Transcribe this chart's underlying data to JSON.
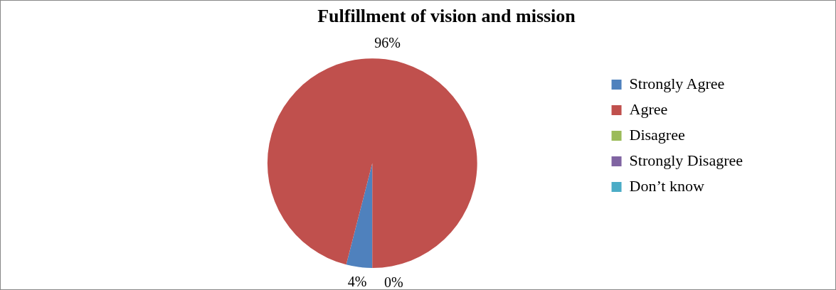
{
  "chart_data": {
    "type": "pie",
    "title": "Fulfillment of vision and mission",
    "categories": [
      "Strongly Agree",
      "Agree",
      "Disagree",
      "Strongly Disagree",
      "Don’t know"
    ],
    "values": [
      4,
      96,
      0,
      0,
      0
    ],
    "colors": [
      "#4f81bd",
      "#c0504d",
      "#9bbb59",
      "#8064a2",
      "#4bacc6"
    ],
    "value_labels": [
      "4%",
      "96%",
      "0%",
      null,
      null
    ],
    "legend": "right"
  }
}
